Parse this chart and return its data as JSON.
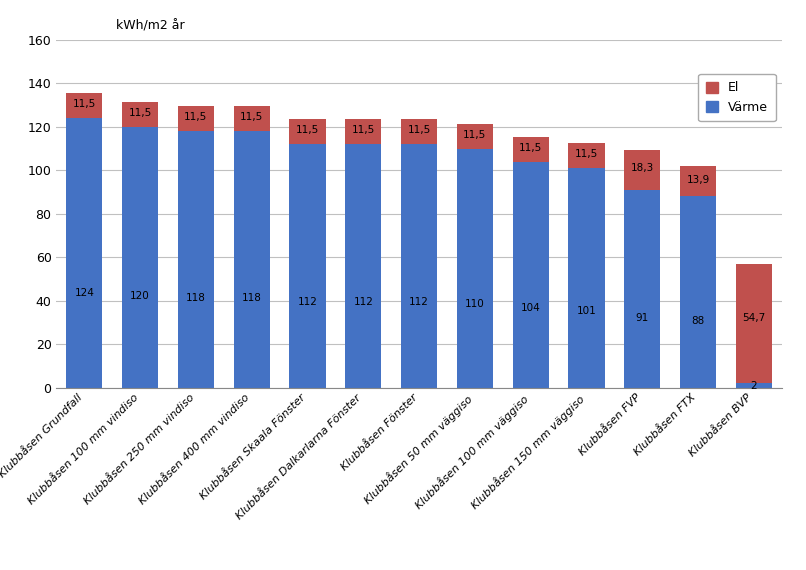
{
  "categories": [
    "Klubbåsen Grundfall",
    "Klubbåsen 100 mm vindiso",
    "Klubbåsen 250 mm vindiso",
    "Klubbåsen 400 mm vindiso",
    "Klubbåsen Skaala Fönster",
    "Klubbåsen Dalkarlarna Fönster",
    "Klubbåsen Fönster",
    "Klubbåsen 50 mm väggiso",
    "Klubbåsen 100 mm väggiso",
    "Klubbåsen 150 mm väggiso",
    "Klubbåsen FVP",
    "Klubbåsen FTX",
    "Klubbåsen BVP"
  ],
  "varme_values": [
    124,
    120,
    118,
    118,
    112,
    112,
    112,
    110,
    104,
    101,
    91,
    88,
    2
  ],
  "el_values": [
    11.5,
    11.5,
    11.5,
    11.5,
    11.5,
    11.5,
    11.5,
    11.5,
    11.5,
    11.5,
    18.3,
    13.9,
    54.7
  ],
  "el_label_values": [
    "11,5",
    "11,5",
    "11,5",
    "11,5",
    "11,5",
    "11,5",
    "11,5",
    "11,5",
    "11,5",
    "11,5",
    "18,3",
    "13,9",
    "54,7"
  ],
  "varme_color": "#4472C4",
  "el_color": "#C0504D",
  "ylabel": "kWh/m2 år",
  "ylim": [
    0,
    160
  ],
  "yticks": [
    0,
    20,
    40,
    60,
    80,
    100,
    120,
    140,
    160
  ],
  "legend_el": "El",
  "legend_varme": "Värme",
  "background_color": "#FFFFFF",
  "grid_color": "#C0C0C0"
}
